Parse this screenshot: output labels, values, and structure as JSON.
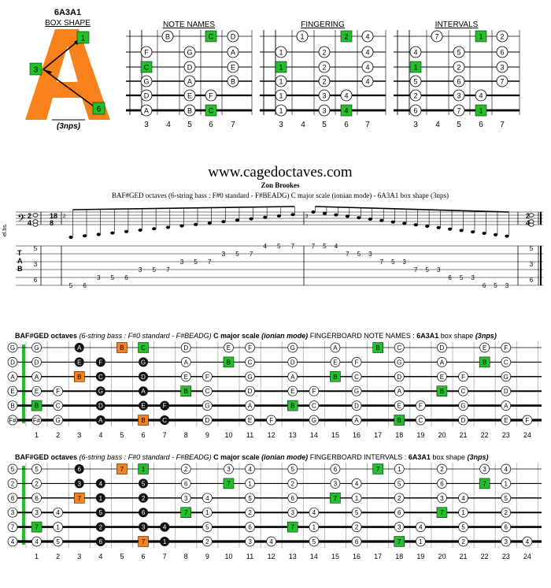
{
  "box_shape": {
    "code": "6A3A1",
    "subtitle": "BOX SHAPE",
    "nps": "(3nps)",
    "markers": [
      "1",
      "3",
      "6"
    ],
    "letter_color": "#f7821b"
  },
  "mini_diagrams": {
    "frets": [
      "3",
      "4",
      "5",
      "6",
      "7"
    ],
    "note_names": {
      "title": "NOTE NAMES",
      "rows": [
        [
          {
            "f": 5,
            "t": "B"
          },
          {
            "f": 6,
            "t": "C",
            "c": "g"
          },
          {
            "f": 7.5,
            "t": "D"
          }
        ],
        [
          {
            "f": 3,
            "t": "F"
          },
          {
            "f": 5,
            "t": "G"
          },
          {
            "f": 7.5,
            "t": "A"
          }
        ],
        [
          {
            "f": 3,
            "t": "C",
            "c": "g"
          },
          {
            "f": 5,
            "t": "D"
          },
          {
            "f": 7.5,
            "t": "E"
          }
        ],
        [
          {
            "f": 3,
            "t": "G"
          },
          {
            "f": 5,
            "t": "A"
          },
          {
            "f": 7.5,
            "t": "B"
          }
        ],
        [
          {
            "f": 3,
            "t": "D"
          },
          {
            "f": 5,
            "t": "E"
          },
          {
            "f": 6,
            "t": "F"
          }
        ],
        [
          {
            "f": 3,
            "t": "A"
          },
          {
            "f": 5,
            "t": "B"
          },
          {
            "f": 6,
            "t": "C",
            "c": "g"
          }
        ]
      ]
    },
    "fingering": {
      "title": "FINGERING",
      "rows": [
        [
          {
            "f": 5,
            "t": "1"
          },
          {
            "f": 6,
            "t": "2",
            "c": "g"
          },
          {
            "f": 7.5,
            "t": "4"
          }
        ],
        [
          {
            "f": 3,
            "t": "1"
          },
          {
            "f": 5,
            "t": "2"
          },
          {
            "f": 7.5,
            "t": "4"
          }
        ],
        [
          {
            "f": 3,
            "t": "1",
            "c": "g"
          },
          {
            "f": 5,
            "t": "2"
          },
          {
            "f": 7.5,
            "t": "4"
          }
        ],
        [
          {
            "f": 3,
            "t": "1"
          },
          {
            "f": 5,
            "t": "2"
          },
          {
            "f": 7.5,
            "t": "4"
          }
        ],
        [
          {
            "f": 3,
            "t": "1"
          },
          {
            "f": 5,
            "t": "3"
          },
          {
            "f": 6,
            "t": "4"
          }
        ],
        [
          {
            "f": 3,
            "t": "1"
          },
          {
            "f": 5,
            "t": "3"
          },
          {
            "f": 6,
            "t": "4",
            "c": "g"
          }
        ]
      ]
    },
    "intervals": {
      "title": "INTERVALS",
      "rows": [
        [
          {
            "f": 5,
            "t": "7"
          },
          {
            "f": 6,
            "t": "1",
            "c": "g"
          },
          {
            "f": 7.5,
            "t": "2"
          }
        ],
        [
          {
            "f": 3,
            "t": "4"
          },
          {
            "f": 5,
            "t": "5"
          },
          {
            "f": 7.5,
            "t": "6"
          }
        ],
        [
          {
            "f": 3,
            "t": "1",
            "c": "g"
          },
          {
            "f": 5,
            "t": "2"
          },
          {
            "f": 7.5,
            "t": "3"
          }
        ],
        [
          {
            "f": 3,
            "t": "5"
          },
          {
            "f": 5,
            "t": "6"
          },
          {
            "f": 7.5,
            "t": "7"
          }
        ],
        [
          {
            "f": 3,
            "t": "2"
          },
          {
            "f": 5,
            "t": "3"
          },
          {
            "f": 6,
            "t": "4"
          }
        ],
        [
          {
            "f": 3,
            "t": "6"
          },
          {
            "f": 5,
            "t": "7"
          },
          {
            "f": 6,
            "t": "1",
            "c": "g"
          }
        ]
      ]
    }
  },
  "site": "www.cagedoctaves.com",
  "author": "Zon Brookes",
  "score_subtitle": "BAF#GED octaves (6-string bass : F#0 standard - F#BEADG) C major scale (ionian mode) - 6A3A1 box shape (3nps)",
  "score": {
    "staff_label": "el.bs.",
    "time_start": [
      "2",
      "4"
    ],
    "time_mid": [
      "18",
      "8"
    ],
    "measure_numbers": [
      "2",
      "3"
    ],
    "tab_letters": [
      "T",
      "A",
      "B"
    ],
    "tab_first": [
      "5",
      "3",
      "6"
    ],
    "tab_last": [
      "5",
      "3",
      "6"
    ],
    "ascending": [
      [
        "5",
        3
      ],
      [
        "6",
        3
      ],
      [
        "3",
        4
      ],
      [
        "5",
        4
      ],
      [
        "6",
        4
      ],
      [
        "3",
        5
      ],
      [
        "5",
        5
      ],
      [
        "7",
        5
      ],
      [
        "3",
        6
      ],
      [
        "5",
        6
      ],
      [
        "7",
        6
      ],
      [
        "3",
        7
      ],
      [
        "5",
        7
      ],
      [
        "7",
        7
      ],
      [
        "4",
        8
      ],
      [
        "5",
        8
      ],
      [
        "7",
        8
      ]
    ],
    "descending": [
      [
        "7",
        8
      ],
      [
        "5",
        8
      ],
      [
        "4",
        8
      ],
      [
        "7",
        7
      ],
      [
        "5",
        7
      ],
      [
        "3",
        7
      ],
      [
        "7",
        6
      ],
      [
        "5",
        6
      ],
      [
        "3",
        6
      ],
      [
        "7",
        5
      ],
      [
        "5",
        5
      ],
      [
        "3",
        5
      ],
      [
        "6",
        4
      ],
      [
        "5",
        4
      ],
      [
        "3",
        4
      ],
      [
        "6",
        3
      ],
      [
        "5",
        3
      ],
      [
        "3",
        3
      ]
    ]
  },
  "fretboard_names": {
    "heading_a": "BAF#GED octaves",
    "heading_b": "(6-string bass : F#0 standard - F#BEADG)",
    "heading_c": "C major scale",
    "heading_d": "(ionian mode)",
    "heading_e": "FINGERBOARD NOTE NAMES :",
    "heading_f": "6A3A1",
    "heading_g": "box shape",
    "heading_h": "(3nps)",
    "open": [
      "G",
      "D",
      "A",
      "E",
      "B",
      "F#"
    ],
    "rows": [
      "G . A . B C . D . E F . G . A . B C . D . E F . G",
      "D . E F . G . A . B C . D . E F . G . A . B C . D",
      "A . B C . D . E F . G . A . B C . D . E F . G . A",
      "E F . G . A . B C . D . E F . G . A . B C . D . E",
      "B C . D . E F . G . A . B C . D . E F . G . A . B",
      "F# G . A . B C . D . E F . G . A . B C . D . E F ."
    ]
  },
  "fretboard_intervals": {
    "heading_e": "FINGERBOARD INTERVALS :",
    "open": [
      "5",
      "2",
      "6",
      "3",
      "7",
      "4"
    ],
    "rows": [
      "5 . 6 . 7 1 . 2 . 3 4 . 5 . 6 . 7 1 . 2 . 3 4 . 5",
      "2 . 3 4 . 5 . 6 . 7 1 . 2 . 3 4 . 5 . 6 . 7 1 . 2",
      "6 . 7 1 . 2 . 3 4 . 5 . 6 . 7 1 . 2 . 3 4 . 5 . 6",
      "3 4 . 5 . 6 . 7 1 . 2 . 3 4 . 5 . 6 . 7 1 . 2 . 3",
      "7 1 . 2 . 3 4 . 5 . 6 . 7 1 . 2 . 3 4 . 5 . 6 . 7",
      "4 5 . 6 . 7 1 . 2 . 3 4 . 5 . 6 . 7 1 . 2 . 3 4 ."
    ]
  },
  "fret_numbers": [
    "1",
    "2",
    "3",
    "4",
    "5",
    "6",
    "7",
    "8",
    "9",
    "10",
    "11",
    "12",
    "13",
    "14",
    "15",
    "16",
    "17",
    "18",
    "19",
    "20",
    "21",
    "22",
    "23",
    "24"
  ],
  "colors": {
    "root": "#22c02a",
    "highlight": "#f7821b",
    "box": "#000000"
  }
}
